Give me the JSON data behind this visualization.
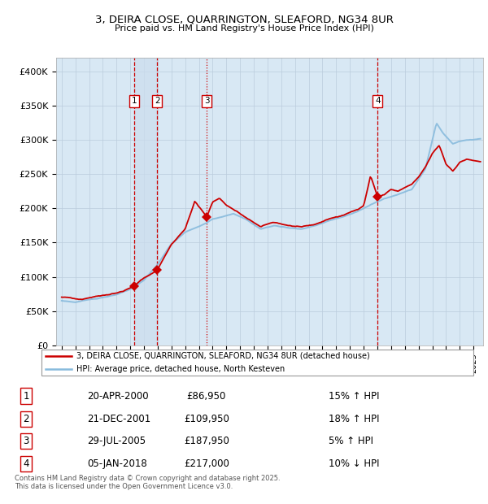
{
  "title_line1": "3, DEIRA CLOSE, QUARRINGTON, SLEAFORD, NG34 8UR",
  "title_line2": "Price paid vs. HM Land Registry's House Price Index (HPI)",
  "hpi_color": "#88BBDD",
  "price_color": "#CC0000",
  "bg_fill": "#D8E8F4",
  "grid_color": "#BBCCDD",
  "vline_color_solid": "#CC0000",
  "vline_color_dash": "#AA0000",
  "ylim": [
    0,
    420000
  ],
  "yticks": [
    0,
    50000,
    100000,
    150000,
    200000,
    250000,
    300000,
    350000,
    400000
  ],
  "ytick_labels": [
    "£0",
    "£50K",
    "£100K",
    "£150K",
    "£200K",
    "£250K",
    "£300K",
    "£350K",
    "£400K"
  ],
  "xlim_start": 1994.6,
  "xlim_end": 2025.7,
  "sale_dates": [
    2000.29,
    2001.97,
    2005.57,
    2018.02
  ],
  "sale_prices": [
    86950,
    109950,
    187950,
    217000
  ],
  "sale_labels": [
    "1",
    "2",
    "3",
    "4"
  ],
  "legend_red": "3, DEIRA CLOSE, QUARRINGTON, SLEAFORD, NG34 8UR (detached house)",
  "legend_blue": "HPI: Average price, detached house, North Kesteven",
  "table_rows": [
    [
      "1",
      "20-APR-2000",
      "£86,950",
      "15% ↑ HPI"
    ],
    [
      "2",
      "21-DEC-2001",
      "£109,950",
      "18% ↑ HPI"
    ],
    [
      "3",
      "29-JUL-2005",
      "£187,950",
      "5% ↑ HPI"
    ],
    [
      "4",
      "05-JAN-2018",
      "£217,000",
      "10% ↓ HPI"
    ]
  ],
  "footnote": "Contains HM Land Registry data © Crown copyright and database right 2025.\nThis data is licensed under the Open Government Licence v3.0."
}
